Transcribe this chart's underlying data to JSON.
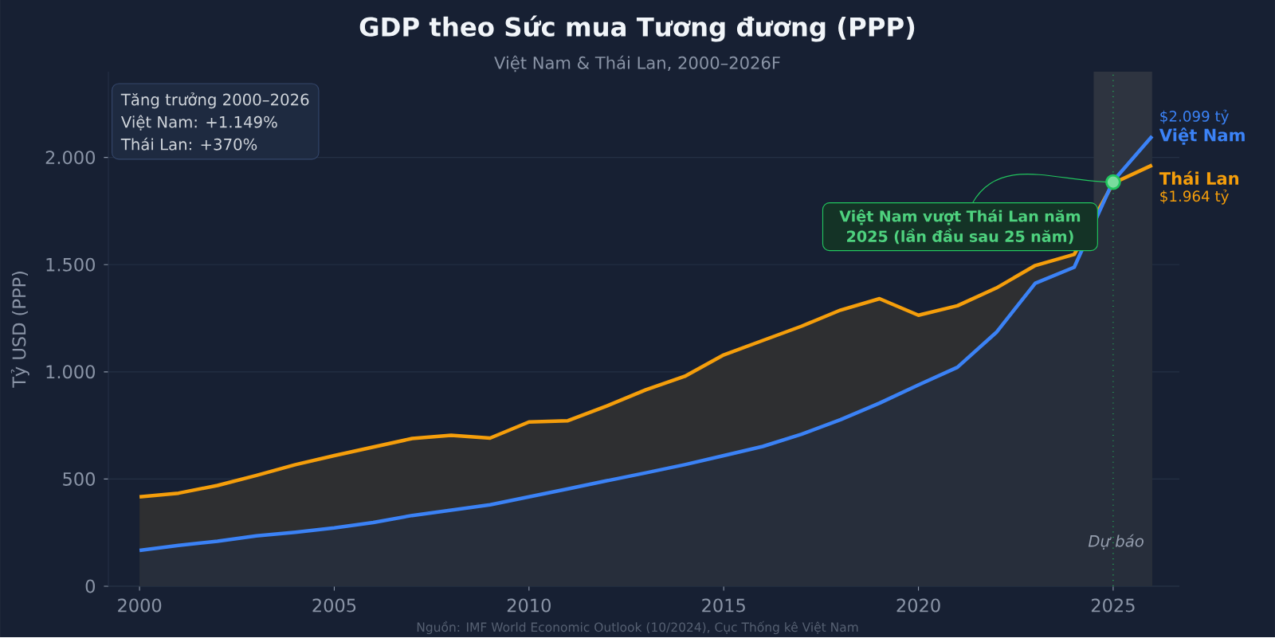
{
  "chart_data": {
    "type": "area",
    "title": "GDP theo Sức mua Tương đương (PPP)",
    "subtitle": "Việt Nam & Thái Lan, 2000–2026F",
    "ylabel": "Tỷ USD (PPP)",
    "x": [
      2000,
      2001,
      2002,
      2003,
      2004,
      2005,
      2006,
      2007,
      2008,
      2009,
      2010,
      2011,
      2012,
      2013,
      2014,
      2015,
      2016,
      2017,
      2018,
      2019,
      2020,
      2021,
      2022,
      2023,
      2024,
      2025,
      2026
    ],
    "series": [
      {
        "name": "Thái Lan",
        "color": "#f59e0b",
        "values": [
          417,
          434,
          470,
          517,
          567,
          609,
          649,
          689,
          704,
          691,
          766,
          772,
          841,
          916,
          979,
          1079,
          1146,
          1213,
          1288,
          1341,
          1264,
          1308,
          1391,
          1496,
          1548,
          1880,
          1964
        ],
        "value_labels": [
          null,
          null,
          null,
          null,
          null,
          null,
          null,
          null,
          null,
          null,
          null,
          null,
          null,
          null,
          null,
          null,
          null,
          null,
          null,
          null,
          null,
          null,
          null,
          null,
          null,
          null,
          "$1.964 tỷ"
        ]
      },
      {
        "name": "Việt Nam",
        "color": "#3b82f6",
        "values": [
          167,
          190,
          210,
          235,
          252,
          272,
          297,
          330,
          355,
          380,
          417,
          454,
          492,
          529,
          567,
          609,
          652,
          709,
          777,
          854,
          939,
          1021,
          1184,
          1413,
          1488,
          1890,
          2099
        ],
        "value_labels": [
          null,
          null,
          null,
          null,
          null,
          null,
          null,
          null,
          null,
          null,
          null,
          null,
          null,
          null,
          null,
          null,
          null,
          null,
          null,
          null,
          null,
          null,
          null,
          null,
          null,
          null,
          "$2.099 tỷ"
        ]
      }
    ],
    "xlim": [
      1999.2,
      2026.7
    ],
    "ylim": [
      0,
      2400
    ],
    "xticks": [
      2000,
      2005,
      2010,
      2015,
      2020,
      2025
    ],
    "yticks": [
      0,
      500,
      {
        "value": 1000,
        "label": "1.000"
      },
      {
        "value": 1500,
        "label": "1.500"
      },
      {
        "value": 2000,
        "label": "2.000"
      }
    ],
    "grid": "y",
    "bands": [
      {
        "axis": "x",
        "from": 2024.5,
        "to": 2026,
        "label": "Dự báo",
        "color": "#2e3440"
      }
    ],
    "ref_lines": [
      {
        "axis": "x",
        "value": 2025,
        "color": "#22c55e",
        "line_style": "dotted"
      }
    ],
    "annotations": [
      "Tăng trưởng 2000–2026",
      "Việt Nam:  +1.149%",
      "Thái Lan:    +370%",
      {
        "text": "Việt Nam vượt Thái Lan năm 2025 (lần đầu sau 25 năm)",
        "x": 2025,
        "y": 1885
      },
      "Nguồn: IMF World Economic Outlook (10/2024), Cục Thống kê Việt Nam"
    ]
  }
}
